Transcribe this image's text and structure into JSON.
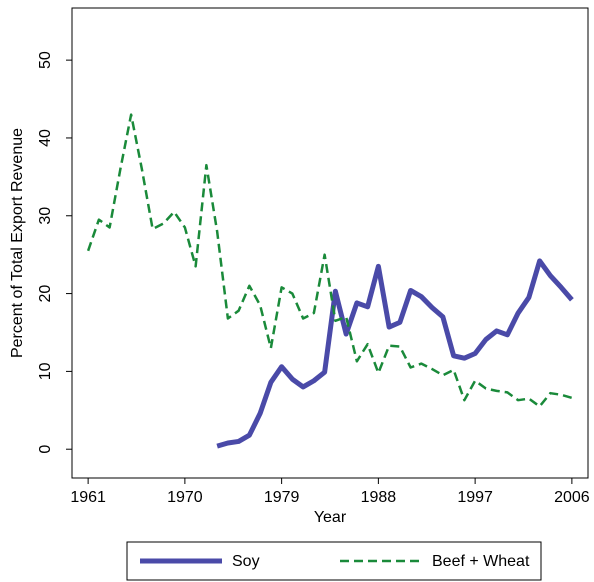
{
  "chart_data": {
    "type": "line",
    "x_label": "Year",
    "y_label": "Percent of Total Export Revenue",
    "x": [
      1961,
      1962,
      1963,
      1964,
      1965,
      1966,
      1967,
      1968,
      1969,
      1970,
      1971,
      1972,
      1973,
      1974,
      1975,
      1976,
      1977,
      1978,
      1979,
      1980,
      1981,
      1982,
      1983,
      1984,
      1985,
      1986,
      1987,
      1988,
      1989,
      1990,
      1991,
      1992,
      1993,
      1994,
      1995,
      1996,
      1997,
      1998,
      1999,
      2000,
      2001,
      2002,
      2003,
      2004,
      2005,
      2006
    ],
    "series": [
      {
        "name": "Soy",
        "color": "#4a4aa8",
        "dash": false,
        "values": [
          null,
          null,
          null,
          null,
          null,
          null,
          null,
          null,
          null,
          null,
          null,
          null,
          0.4,
          0.8,
          1,
          1.8,
          4.6,
          8.6,
          10.6,
          9,
          8,
          8.8,
          9.9,
          20.3,
          14.8,
          18.8,
          18.3,
          23.5,
          15.7,
          16.3,
          20.4,
          19.6,
          18.2,
          17,
          12,
          11.7,
          12.3,
          14.1,
          15.2,
          14.7,
          17.5,
          19.5,
          24.2,
          22.3,
          20.8,
          19.2
        ]
      },
      {
        "name": "Beef + Wheat",
        "color": "#1a8a3a",
        "dash": true,
        "values": [
          25.5,
          29.5,
          28.5,
          36,
          43,
          36,
          28.3,
          29,
          30.5,
          28.5,
          23.5,
          36.5,
          28,
          16.8,
          17.8,
          21,
          18.5,
          13,
          20.8,
          20,
          16.8,
          17.5,
          25,
          16.5,
          17,
          11.3,
          13.5,
          9.8,
          13.3,
          13.2,
          10.5,
          11,
          10.3,
          9.5,
          10.2,
          6.3,
          8.8,
          7.8,
          7.5,
          7.3,
          6.3,
          6.5,
          5.5,
          7.2,
          7,
          6.6
        ]
      }
    ],
    "xlim": [
      1959.5,
      2007.5
    ],
    "xticks": [
      1961,
      1970,
      1979,
      1988,
      1997,
      2006
    ],
    "ylim": [
      -3.7,
      56.7
    ],
    "yticks": [
      0,
      10,
      20,
      30,
      40,
      50
    ],
    "legend": "bottom"
  }
}
